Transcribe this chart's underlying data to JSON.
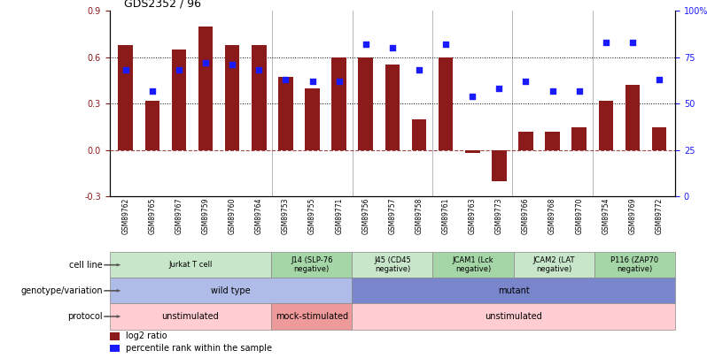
{
  "title": "GDS2352 / 96",
  "samples": [
    "GSM89762",
    "GSM89765",
    "GSM89767",
    "GSM89759",
    "GSM89760",
    "GSM89764",
    "GSM89753",
    "GSM89755",
    "GSM89771",
    "GSM89756",
    "GSM89757",
    "GSM89758",
    "GSM89761",
    "GSM89763",
    "GSM89773",
    "GSM89766",
    "GSM89768",
    "GSM89770",
    "GSM89754",
    "GSM89769",
    "GSM89772"
  ],
  "log2_ratio": [
    0.68,
    0.32,
    0.65,
    0.8,
    0.68,
    0.68,
    0.47,
    0.4,
    0.6,
    0.6,
    0.55,
    0.2,
    0.6,
    -0.02,
    -0.2,
    0.12,
    0.12,
    0.15,
    0.32,
    0.42,
    0.15
  ],
  "percentile_rank": [
    68,
    57,
    68,
    72,
    71,
    68,
    63,
    62,
    62,
    82,
    80,
    68,
    82,
    54,
    58,
    62,
    57,
    57,
    83,
    83,
    63
  ],
  "cell_line_groups": [
    {
      "label": "Jurkat T cell",
      "start": 0,
      "end": 6,
      "color": "#c8e6c9"
    },
    {
      "label": "J14 (SLP-76\nnegative)",
      "start": 6,
      "end": 9,
      "color": "#a5d6a7"
    },
    {
      "label": "J45 (CD45\nnegative)",
      "start": 9,
      "end": 12,
      "color": "#c8e6c9"
    },
    {
      "label": "JCAM1 (Lck\nnegative)",
      "start": 12,
      "end": 15,
      "color": "#a5d6a7"
    },
    {
      "label": "JCAM2 (LAT\nnegative)",
      "start": 15,
      "end": 18,
      "color": "#c8e6c9"
    },
    {
      "label": "P116 (ZAP70\nnegative)",
      "start": 18,
      "end": 21,
      "color": "#a5d6a7"
    }
  ],
  "genotype_groups": [
    {
      "label": "wild type",
      "start": 0,
      "end": 9,
      "color": "#b0bce8"
    },
    {
      "label": "mutant",
      "start": 9,
      "end": 21,
      "color": "#7986cb"
    }
  ],
  "protocol_groups": [
    {
      "label": "unstimulated",
      "start": 0,
      "end": 6,
      "color": "#ffcdd2"
    },
    {
      "label": "mock-stimulated",
      "start": 6,
      "end": 9,
      "color": "#ef9a9a"
    },
    {
      "label": "unstimulated",
      "start": 9,
      "end": 21,
      "color": "#ffcdd2"
    }
  ],
  "ylim_left": [
    -0.3,
    0.9
  ],
  "ylim_right": [
    0,
    100
  ],
  "yticks_left": [
    -0.3,
    0.0,
    0.3,
    0.6,
    0.9
  ],
  "yticks_right": [
    0,
    25,
    50,
    75,
    100
  ],
  "bar_color": "#8b1a1a",
  "dot_color": "#1a1aff",
  "hline_y_left": [
    0.3,
    0.6
  ],
  "zero_line_y": 0.0,
  "legend_items": [
    {
      "color": "#8b1a1a",
      "label": "log2 ratio"
    },
    {
      "color": "#1a1aff",
      "label": "percentile rank within the sample"
    }
  ],
  "group_boundaries": [
    6,
    9,
    12,
    15,
    18
  ]
}
